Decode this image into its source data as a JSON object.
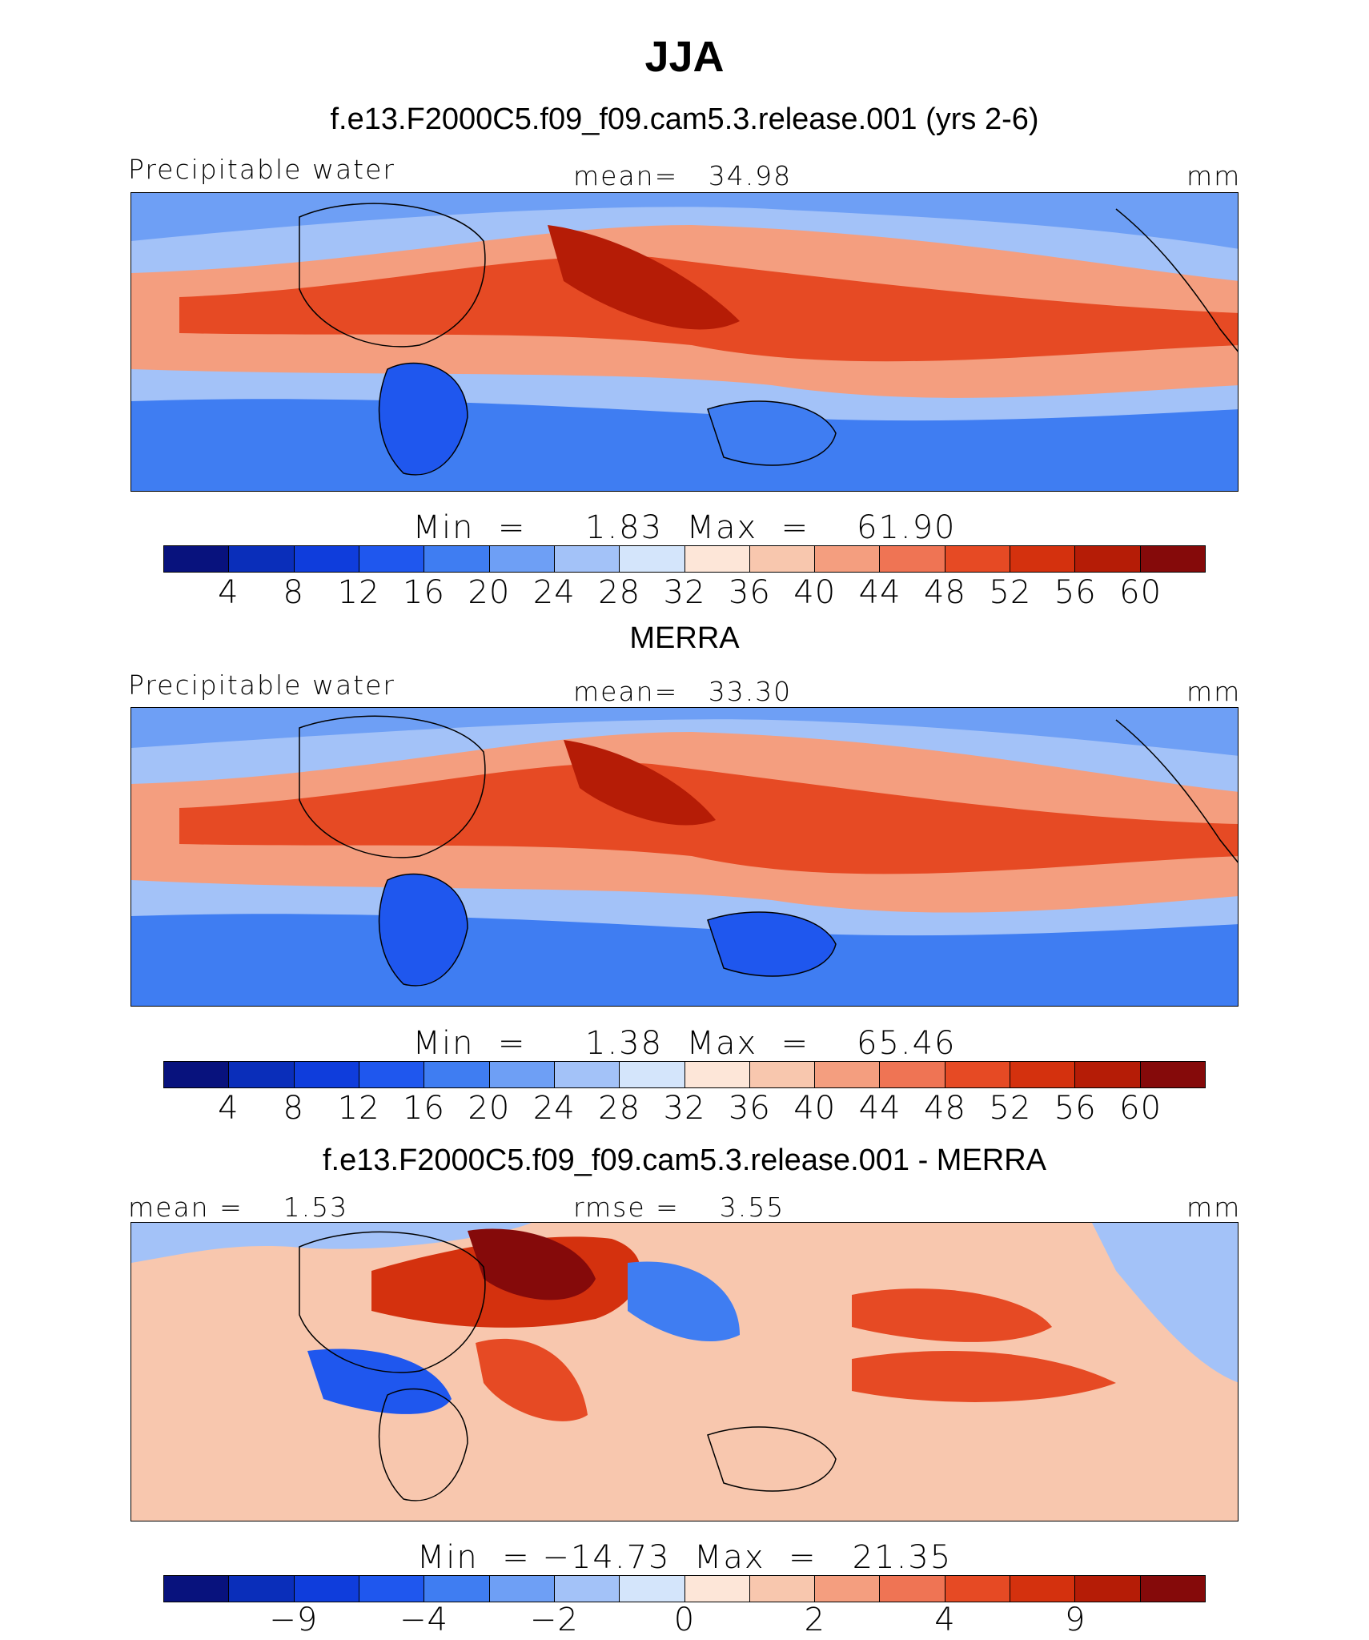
{
  "title": "JJA",
  "colors": {
    "levels": [
      "#08127d",
      "#0a2eba",
      "#0f3ddc",
      "#1f57ee",
      "#3f7df2",
      "#6e9ff5",
      "#a3c2f8",
      "#d4e5fb",
      "#fde6d8",
      "#f8c7ae",
      "#f49e7f",
      "#ef7454",
      "#e64a24",
      "#d4310e",
      "#b51c06",
      "#850a0a"
    ],
    "land": "#000000"
  },
  "panels": [
    {
      "subtitle": "f.e13.F2000C5.f09_f09.cam5.3.release.001 (yrs 2-6)",
      "left_label": "Precipitable water",
      "center_label": "mean=   34.98",
      "right_label": "mm",
      "minmax": "Min  =     1.83  Max  =    61.90",
      "ticks": [
        "4",
        "8",
        "12",
        "16",
        "20",
        "24",
        "28",
        "32",
        "36",
        "40",
        "44",
        "48",
        "52",
        "56",
        "60"
      ]
    },
    {
      "subtitle": "MERRA",
      "left_label": "Precipitable water",
      "center_label": "mean=   33.30",
      "right_label": "mm",
      "minmax": "Min  =     1.38  Max  =    65.46",
      "ticks": [
        "4",
        "8",
        "12",
        "16",
        "20",
        "24",
        "28",
        "32",
        "36",
        "40",
        "44",
        "48",
        "52",
        "56",
        "60"
      ]
    },
    {
      "subtitle": "f.e13.F2000C5.f09_f09.cam5.3.release.001 - MERRA",
      "left_label": "mean =    1.53",
      "center_label": "rmse =    3.55",
      "right_label": "mm",
      "minmax": "Min  = −14.73  Max  =   21.35",
      "ticks": [
        "−9",
        "−4",
        "−2",
        "0",
        "2",
        "4",
        "9"
      ]
    }
  ]
}
